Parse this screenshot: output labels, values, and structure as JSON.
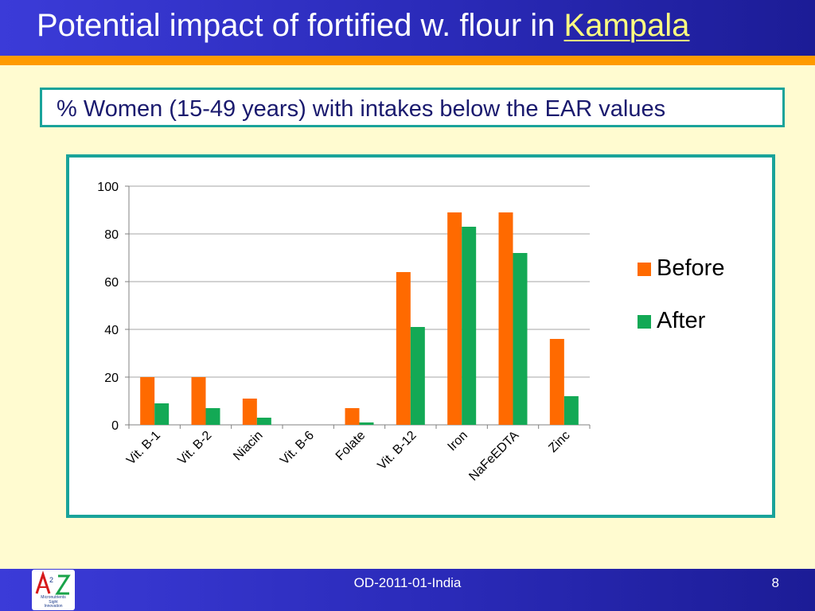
{
  "header": {
    "title_prefix": "Potential impact of fortified w. flour in ",
    "title_highlight": "Kampala"
  },
  "subtitle": "% Women (15-49 years) with intakes below the EAR values",
  "chart_data": {
    "type": "bar",
    "categories": [
      "Vit. B-1",
      "Vit. B-2",
      "Niacin",
      "Vit. B-6",
      "Folate",
      "Vit. B-12",
      "Iron",
      "NaFeEDTA",
      "Zinc"
    ],
    "series": [
      {
        "name": "Before",
        "values": [
          20,
          20,
          11,
          0,
          7,
          64,
          89,
          89,
          36
        ],
        "color": "#ff6a00"
      },
      {
        "name": "After",
        "values": [
          9,
          7,
          3,
          0,
          1,
          41,
          83,
          72,
          12
        ],
        "color": "#13a955"
      }
    ],
    "ylim": [
      0,
      100
    ],
    "yticks": [
      0,
      20,
      40,
      60,
      80,
      100
    ],
    "grid": true,
    "legend_position": "right"
  },
  "footer": {
    "center_text": "OD-2011-01-India",
    "page_number": "8",
    "logo_text": "A2Z",
    "logo_subtext": "Micronutrients\nSight\nInnovation"
  }
}
